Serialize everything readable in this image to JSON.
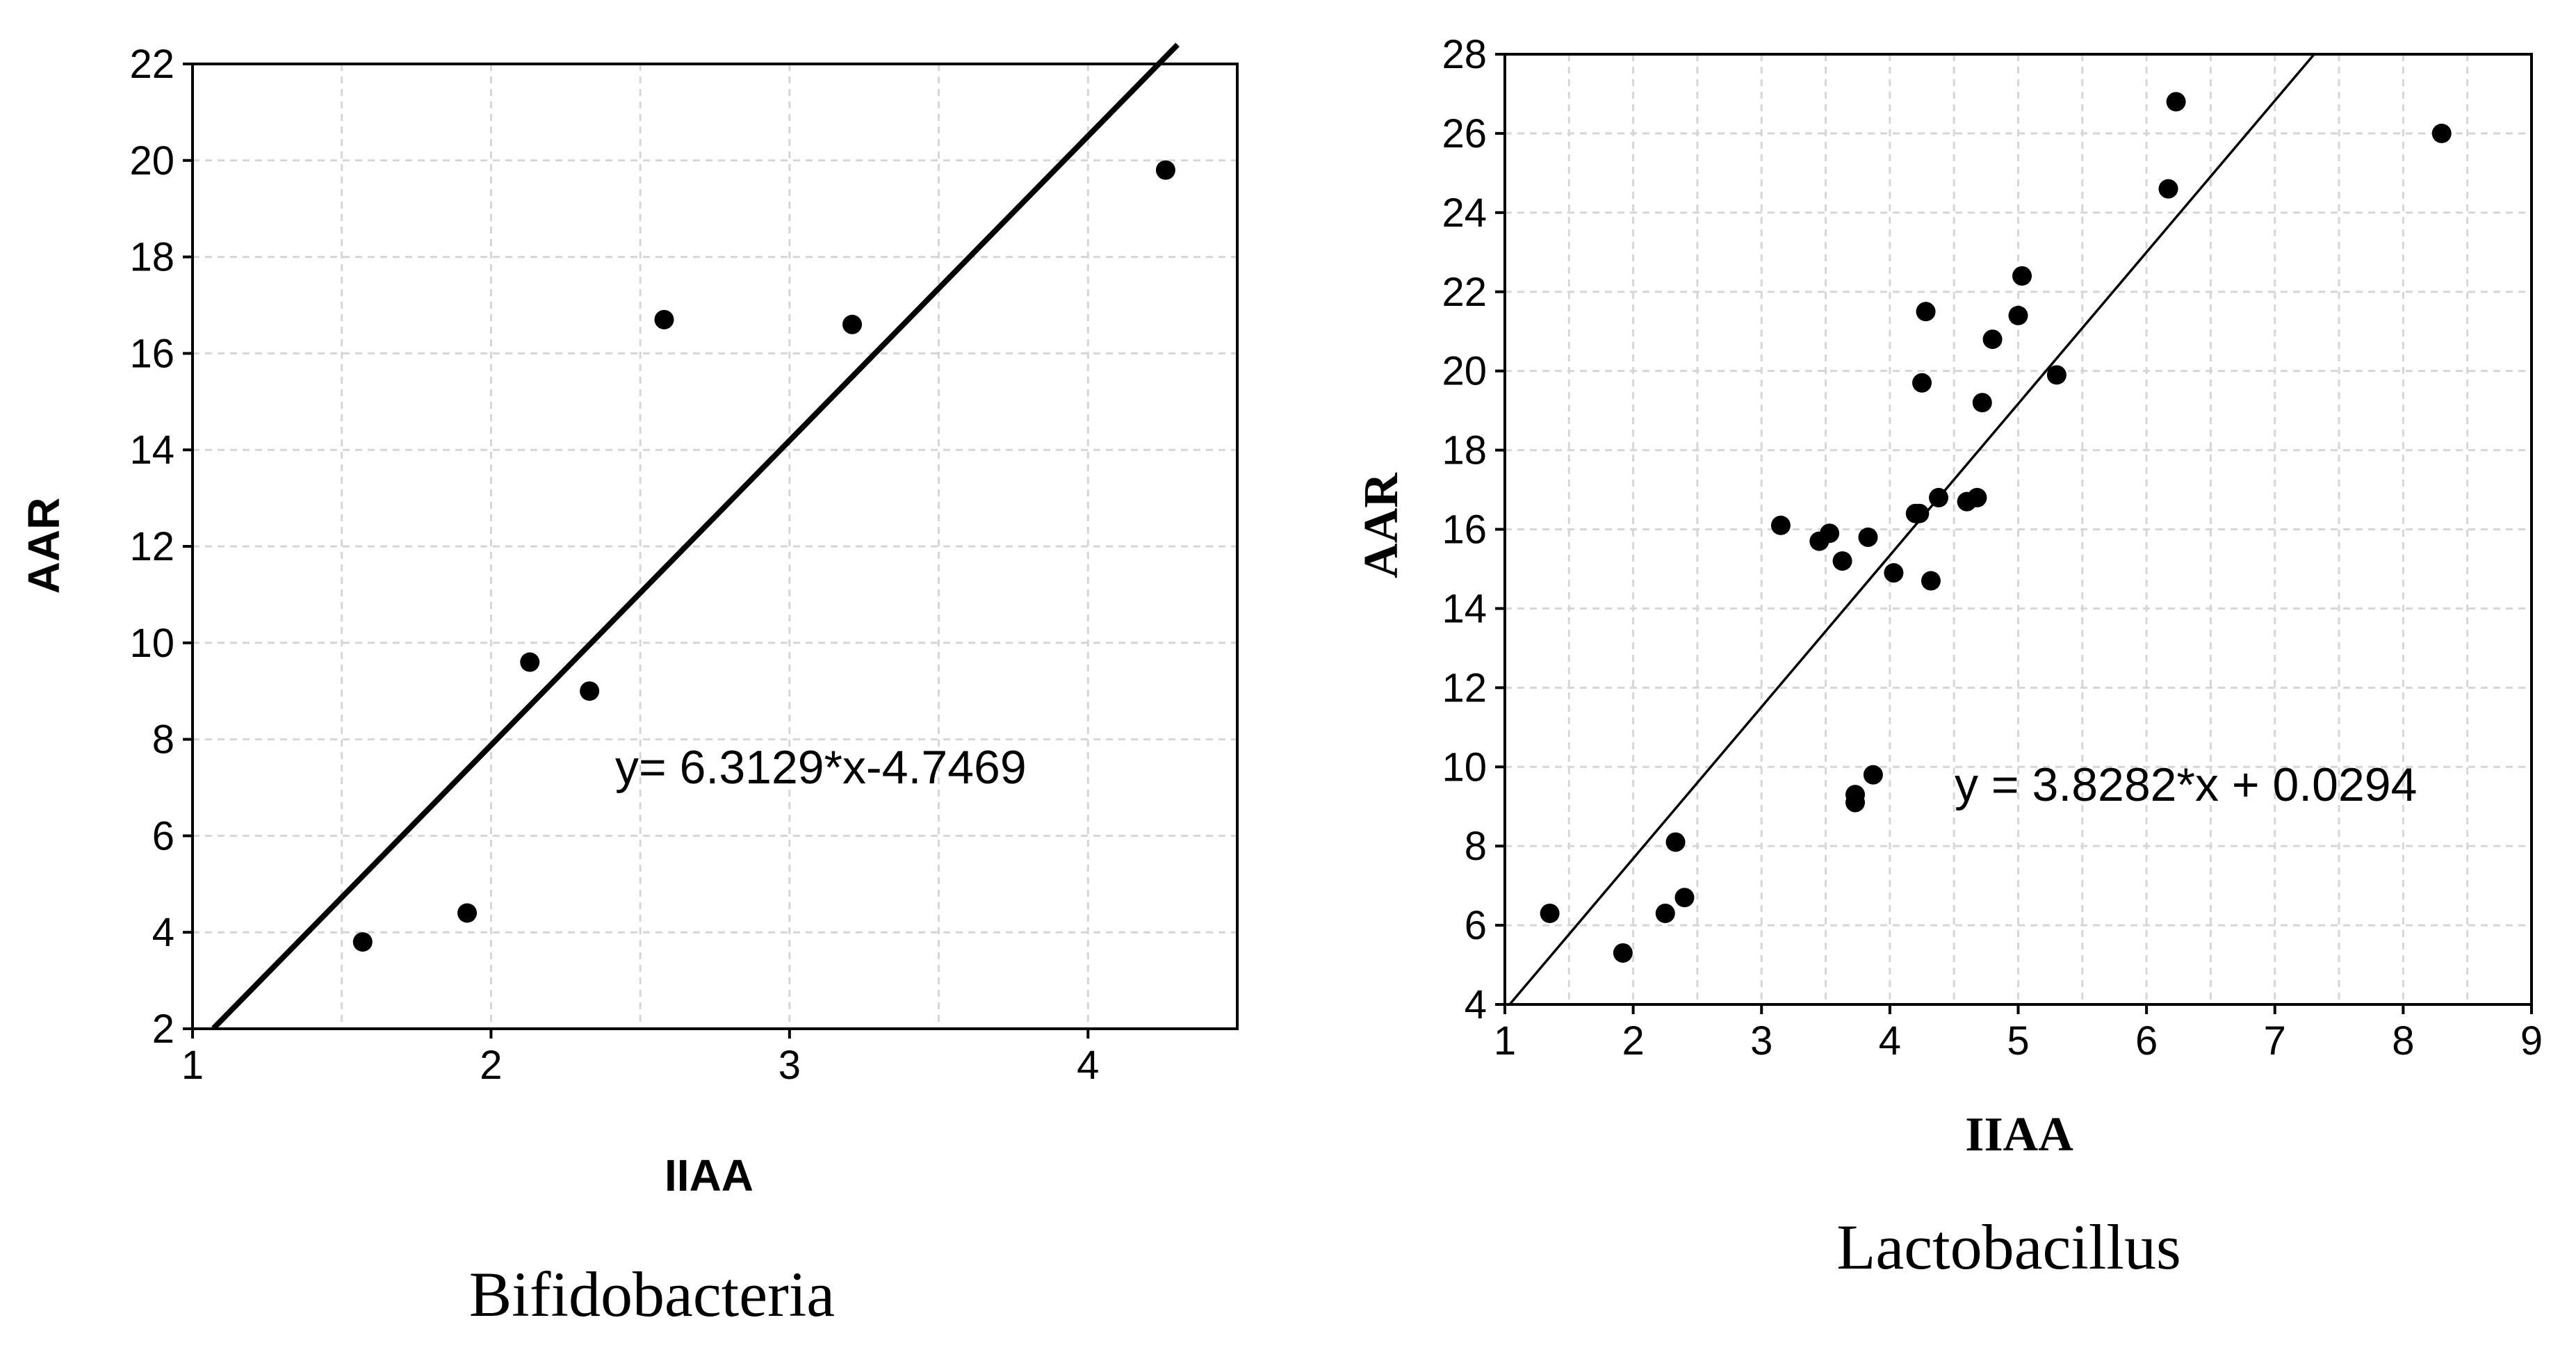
{
  "chart_data": [
    {
      "type": "scatter",
      "caption": "Bifidobacteria",
      "xlabel": "IIAA",
      "ylabel": "AAR",
      "xlim": [
        1,
        4.5
      ],
      "ylim": [
        2,
        22
      ],
      "xticks": [
        1,
        2,
        3,
        4
      ],
      "yticks": [
        2,
        4,
        6,
        8,
        10,
        12,
        14,
        16,
        18,
        20,
        22
      ],
      "grid": true,
      "points": [
        {
          "x": 1.57,
          "y": 3.8
        },
        {
          "x": 1.92,
          "y": 4.4
        },
        {
          "x": 2.13,
          "y": 9.6
        },
        {
          "x": 2.33,
          "y": 9.0
        },
        {
          "x": 2.58,
          "y": 16.7
        },
        {
          "x": 3.21,
          "y": 16.6
        },
        {
          "x": 4.26,
          "y": 19.8
        }
      ],
      "fit": {
        "slope": 6.3129,
        "intercept": -4.7469,
        "x_range": [
          1.07,
          4.3
        ]
      },
      "equation": "y= 6.3129*x-4.7469"
    },
    {
      "type": "scatter",
      "caption": "Lactobacillus",
      "xlabel": "IIAA",
      "ylabel": "AAR",
      "xlim": [
        1,
        9
      ],
      "ylim": [
        4,
        28
      ],
      "xticks": [
        1,
        2,
        3,
        4,
        5,
        6,
        7,
        8,
        9
      ],
      "yticks": [
        4,
        6,
        8,
        10,
        12,
        14,
        16,
        18,
        20,
        22,
        24,
        26,
        28
      ],
      "grid": true,
      "points": [
        {
          "x": 1.35,
          "y": 6.3
        },
        {
          "x": 1.92,
          "y": 5.3
        },
        {
          "x": 2.25,
          "y": 6.3
        },
        {
          "x": 2.33,
          "y": 8.1
        },
        {
          "x": 2.4,
          "y": 6.7
        },
        {
          "x": 3.15,
          "y": 16.1
        },
        {
          "x": 3.45,
          "y": 15.7
        },
        {
          "x": 3.53,
          "y": 15.9
        },
        {
          "x": 3.63,
          "y": 15.2
        },
        {
          "x": 3.73,
          "y": 9.3
        },
        {
          "x": 3.73,
          "y": 9.1
        },
        {
          "x": 3.83,
          "y": 15.8
        },
        {
          "x": 3.87,
          "y": 9.8
        },
        {
          "x": 4.03,
          "y": 14.9
        },
        {
          "x": 4.2,
          "y": 16.4
        },
        {
          "x": 4.23,
          "y": 16.4
        },
        {
          "x": 4.25,
          "y": 19.7
        },
        {
          "x": 4.28,
          "y": 21.5
        },
        {
          "x": 4.32,
          "y": 14.7
        },
        {
          "x": 4.38,
          "y": 16.8
        },
        {
          "x": 4.6,
          "y": 16.7
        },
        {
          "x": 4.68,
          "y": 16.8
        },
        {
          "x": 4.72,
          "y": 19.2
        },
        {
          "x": 4.8,
          "y": 20.8
        },
        {
          "x": 5.0,
          "y": 21.4
        },
        {
          "x": 5.03,
          "y": 22.4
        },
        {
          "x": 5.3,
          "y": 19.9
        },
        {
          "x": 6.17,
          "y": 24.6
        },
        {
          "x": 6.23,
          "y": 26.8
        },
        {
          "x": 8.3,
          "y": 26.0
        }
      ],
      "fit": {
        "slope": 3.8282,
        "intercept": 0.0294,
        "x_range": [
          1.04,
          7.31
        ]
      },
      "equation": "y = 3.8282*x + 0.0294"
    }
  ]
}
